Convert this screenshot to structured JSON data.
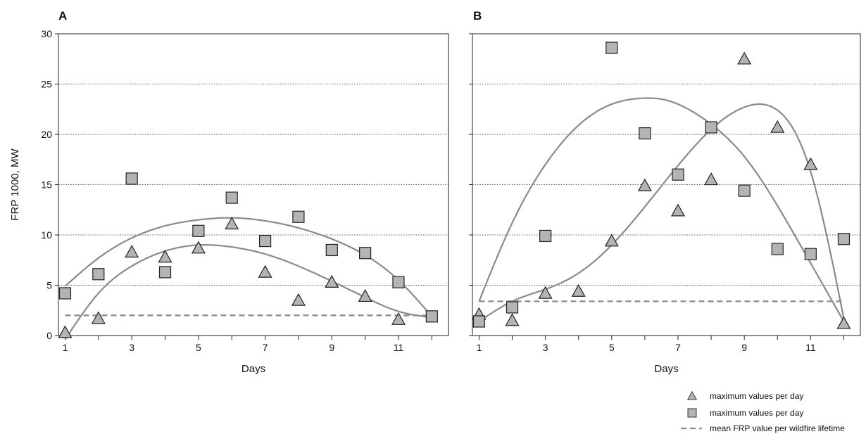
{
  "chart_data": [
    {
      "type": "scatter",
      "panel": "A",
      "xlabel": "Days",
      "ylabel": "FRP 1000, MW",
      "xlim": [
        0.8,
        12.5
      ],
      "ylim": [
        0,
        30
      ],
      "x_ticks": [
        1,
        3,
        5,
        7,
        9,
        11
      ],
      "y_ticks": [
        0,
        5,
        10,
        15,
        20,
        25,
        30
      ],
      "grid": "horizontal dotted",
      "series": [
        {
          "marker": "triangle",
          "x": [
            1,
            2,
            3,
            4,
            5,
            6,
            7,
            8,
            9,
            10,
            11
          ],
          "y": [
            0.3,
            1.7,
            8.3,
            7.8,
            8.7,
            11.1,
            6.3,
            3.5,
            5.3,
            3.9,
            1.6
          ]
        },
        {
          "marker": "square",
          "x": [
            1,
            2,
            3,
            4,
            5,
            6,
            7,
            8,
            9,
            10,
            11,
            12
          ],
          "y": [
            4.2,
            6.1,
            15.6,
            6.3,
            10.4,
            13.7,
            9.4,
            11.8,
            8.5,
            8.2,
            5.3,
            1.9
          ]
        }
      ],
      "trend_curves": [
        {
          "marker": "square",
          "x": [
            1,
            2,
            3,
            4,
            5,
            6,
            7,
            8,
            9,
            10,
            11,
            12
          ],
          "y": [
            4.9,
            7.7,
            9.7,
            10.9,
            11.5,
            11.7,
            11.4,
            10.7,
            9.6,
            8.0,
            5.5,
            1.9
          ]
        },
        {
          "marker": "triangle",
          "x": [
            1,
            2,
            3,
            4,
            5,
            6,
            7,
            8,
            9,
            10,
            11,
            12
          ],
          "y": [
            -0.4,
            4.2,
            6.9,
            8.4,
            9.0,
            8.8,
            8.1,
            6.9,
            5.4,
            3.8,
            2.4,
            1.8
          ]
        }
      ],
      "mean_line": {
        "y": 2.0,
        "x_from": 1,
        "x_to": 12
      }
    },
    {
      "type": "scatter",
      "panel": "B",
      "xlabel": "Days",
      "xlim": [
        0.8,
        12.5
      ],
      "ylim": [
        0,
        30
      ],
      "x_ticks": [
        1,
        3,
        5,
        7,
        9,
        11
      ],
      "grid": "horizontal dotted",
      "series": [
        {
          "marker": "triangle",
          "x": [
            1,
            2,
            3,
            4,
            5,
            6,
            7,
            8,
            9,
            10,
            11,
            12
          ],
          "y": [
            2.1,
            1.5,
            4.2,
            4.4,
            9.4,
            14.9,
            12.4,
            15.5,
            27.5,
            20.7,
            17.0,
            1.2
          ]
        },
        {
          "marker": "square",
          "x": [
            1,
            2,
            3,
            4,
            5,
            6,
            7,
            8,
            9,
            10,
            11,
            12
          ],
          "y": [
            1.4,
            2.8,
            9.9,
            null,
            28.6,
            20.1,
            16.0,
            20.7,
            14.4,
            8.6,
            8.1,
            9.6
          ]
        }
      ],
      "trend_curves": [
        {
          "marker": "square",
          "x": [
            1,
            2,
            3,
            4,
            5,
            6,
            6.5,
            7,
            8,
            9,
            10,
            11,
            12
          ],
          "y": [
            3.4,
            11.2,
            17.0,
            20.9,
            23.0,
            23.6,
            23.5,
            23.0,
            21.0,
            17.8,
            12.9,
            7.2,
            1.4
          ]
        },
        {
          "marker": "triangle",
          "x": [
            1,
            2,
            3,
            4,
            5,
            6,
            7,
            8,
            9,
            9.5,
            10,
            11,
            12
          ],
          "y": [
            1.4,
            3.4,
            4.6,
            6.2,
            9.0,
            12.8,
            16.9,
            20.5,
            22.7,
            23.0,
            22.4,
            16.3,
            1.7
          ]
        }
      ],
      "mean_line": {
        "y": 3.4,
        "x_from": 1,
        "x_to": 12
      }
    }
  ],
  "legend": {
    "placement": "bottom-right",
    "entries": [
      {
        "symbol": "triangle",
        "label": "maximum values per day"
      },
      {
        "symbol": "square",
        "label": "maximum values per day"
      },
      {
        "symbol": "dashed-line",
        "label": "mean FRP value per wildfire lifetime"
      }
    ]
  },
  "colors": {
    "marker_fill": "#b4b4b4",
    "marker_stroke": "#222222",
    "trend": "#8a8a8a",
    "grid": "#222222"
  }
}
